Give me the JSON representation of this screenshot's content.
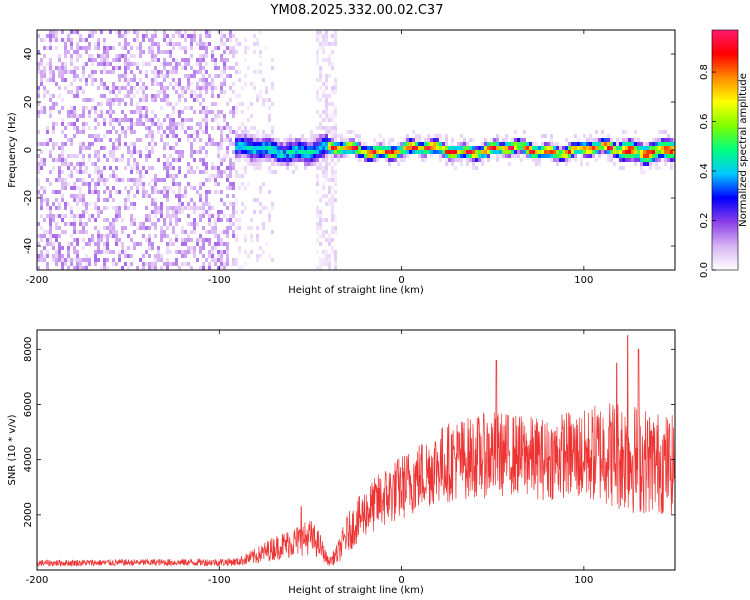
{
  "title": "YM08.2025.332.00.02.C37",
  "chart_data": [
    {
      "type": "heatmap",
      "xlabel": "Height of straight line (km)",
      "ylabel": "Frequency (Hz)",
      "xlim": [
        -200,
        150
      ],
      "ylim": [
        -50,
        50
      ],
      "xticks": [
        -200,
        -100,
        0,
        100
      ],
      "yticks": [
        -40,
        -20,
        0,
        20,
        40
      ],
      "colorbar": {
        "label": "Normalized spectral amplitude",
        "range": [
          0.0,
          0.97
        ],
        "ticks": [
          "0.0",
          "0.2",
          "0.4",
          "0.6",
          "0.8"
        ],
        "colormap": [
          "#ffffff",
          "#d7b3f3",
          "#8b3fe8",
          "#0000ff",
          "#00c8ff",
          "#00ff7f",
          "#7fff00",
          "#ffff00",
          "#ff8c00",
          "#ff0000",
          "#ff1a6e"
        ]
      },
      "features": {
        "noise_region_x": [
          -200,
          -92
        ],
        "ridge_x": [
          -92,
          150
        ],
        "ridge_frequency_hz": 0,
        "vertical_band_x": [
          -47,
          -35
        ]
      }
    },
    {
      "type": "line",
      "xlabel": "Height of straight line (km)",
      "ylabel": "SNR (10 * v/v)",
      "xlim": [
        -200,
        150
      ],
      "ylim": [
        0,
        8700
      ],
      "xticks": [
        -200,
        -100,
        0,
        100
      ],
      "yticks": [
        2000,
        4000,
        6000,
        8000
      ],
      "series": [
        {
          "color": "#ee3333",
          "envelope": {
            "x": [
              -200,
              -150,
              -100,
              -90,
              -80,
              -70,
              -60,
              -50,
              -45,
              -40,
              -35,
              -30,
              -20,
              -10,
              0,
              10,
              20,
              30,
              40,
              50,
              60,
              70,
              80,
              90,
              100,
              110,
              120,
              130,
              140,
              150
            ],
            "mean": [
              250,
              270,
              280,
              300,
              500,
              800,
              1000,
              1200,
              900,
              280,
              600,
              1300,
              2100,
              2600,
              3000,
              3400,
              3800,
              4000,
              4100,
              4200,
              4200,
              4100,
              4000,
              4200,
              4100,
              4300,
              4200,
              4000,
              3900,
              3800
            ],
            "amp": [
              120,
              120,
              140,
              150,
              300,
              450,
              550,
              650,
              500,
              130,
              400,
              700,
              900,
              1100,
              1200,
              1300,
              1400,
              1500,
              1500,
              1600,
              1500,
              1500,
              1500,
              1600,
              1700,
              1900,
              2100,
              2000,
              1900,
              1800
            ]
          },
          "peaks": [
            [
              52,
              7600
            ],
            [
              118,
              7500
            ],
            [
              124,
              8500
            ],
            [
              130,
              8000
            ],
            [
              -55,
              2300
            ]
          ]
        }
      ]
    }
  ]
}
